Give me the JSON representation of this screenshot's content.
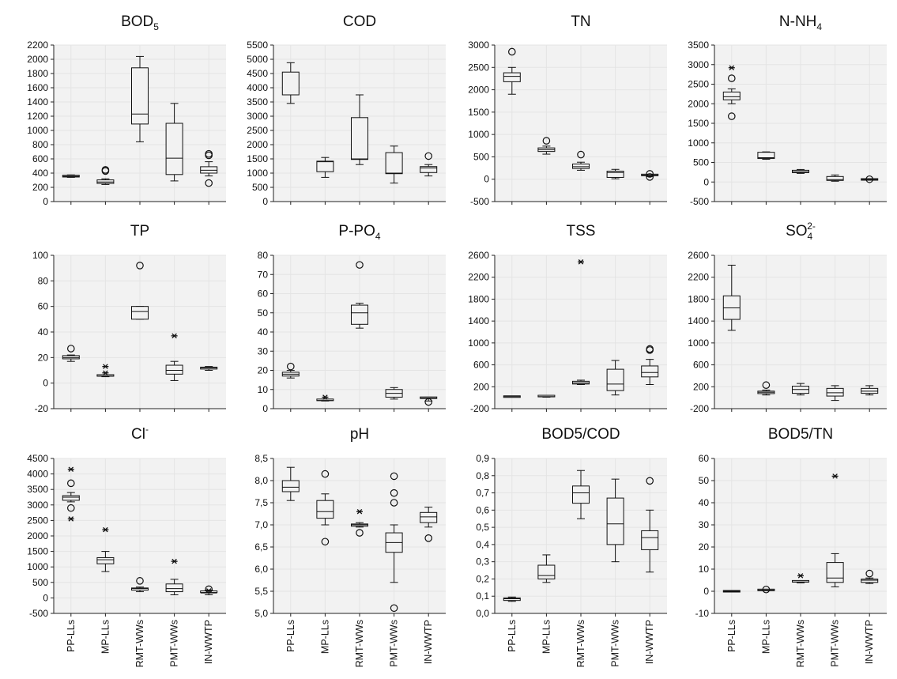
{
  "figure": {
    "colors": {
      "panel_bg": "#f2f2f2",
      "grid": "#e4e4e4",
      "ink": "#111111"
    },
    "categories": [
      "PP-LLs",
      "MP-LLs",
      "RMT-WWs",
      "PMT-WWs",
      "IN-WWTP"
    ]
  },
  "chart_data": [
    {
      "type": "box",
      "title": "BOD",
      "title_sub": "5",
      "title_sup": "",
      "ylim": [
        0,
        2200
      ],
      "yticks": [
        0,
        200,
        400,
        600,
        800,
        1000,
        1200,
        1400,
        1600,
        1800,
        2000,
        2200
      ],
      "ytick_labels": [
        "0",
        "200",
        "400",
        "600",
        "800",
        "1000",
        "1200",
        "1400",
        "1600",
        "1800",
        "2000",
        "2200"
      ],
      "boxes": [
        {
          "wlo": 340,
          "q1": 345,
          "med": 355,
          "q3": 370,
          "whi": 375,
          "outliers": [],
          "extremes": []
        },
        {
          "wlo": 240,
          "q1": 255,
          "med": 275,
          "q3": 305,
          "whi": 320,
          "outliers": [
            430,
            445
          ],
          "extremes": []
        },
        {
          "wlo": 840,
          "q1": 1090,
          "med": 1230,
          "q3": 1880,
          "whi": 2040,
          "outliers": [],
          "extremes": []
        },
        {
          "wlo": 290,
          "q1": 380,
          "med": 610,
          "q3": 1100,
          "whi": 1380,
          "outliers": [],
          "extremes": []
        },
        {
          "wlo": 360,
          "q1": 400,
          "med": 440,
          "q3": 490,
          "whi": 560,
          "outliers": [
            260,
            650,
            670
          ],
          "extremes": []
        }
      ]
    },
    {
      "type": "box",
      "title": "COD",
      "title_sub": "",
      "title_sup": "",
      "ylim": [
        0,
        5500
      ],
      "yticks": [
        0,
        500,
        1000,
        1500,
        2000,
        2500,
        3000,
        3500,
        4000,
        4500,
        5000,
        5500
      ],
      "ytick_labels": [
        "0",
        "500",
        "1000",
        "1500",
        "2000",
        "2500",
        "3000",
        "3500",
        "4000",
        "4500",
        "5000",
        "5500"
      ],
      "boxes": [
        {
          "wlo": 3450,
          "q1": 3750,
          "med": 3750,
          "q3": 4550,
          "whi": 4880,
          "outliers": [],
          "extremes": []
        },
        {
          "wlo": 850,
          "q1": 1050,
          "med": 1400,
          "q3": 1420,
          "whi": 1550,
          "outliers": [],
          "extremes": []
        },
        {
          "wlo": 1300,
          "q1": 1480,
          "med": 1500,
          "q3": 2950,
          "whi": 3750,
          "outliers": [],
          "extremes": []
        },
        {
          "wlo": 650,
          "q1": 980,
          "med": 1000,
          "q3": 1720,
          "whi": 1950,
          "outliers": [],
          "extremes": []
        },
        {
          "wlo": 900,
          "q1": 1020,
          "med": 1180,
          "q3": 1230,
          "whi": 1300,
          "outliers": [
            1600
          ],
          "extremes": []
        }
      ]
    },
    {
      "type": "box",
      "title": "TN",
      "title_sub": "",
      "title_sup": "",
      "ylim": [
        -500,
        3000
      ],
      "yticks": [
        -500,
        0,
        500,
        1000,
        1500,
        2000,
        2500,
        3000
      ],
      "ytick_labels": [
        "-500",
        "0",
        "500",
        "1000",
        "1500",
        "2000",
        "2500",
        "3000"
      ],
      "boxes": [
        {
          "wlo": 1900,
          "q1": 2180,
          "med": 2300,
          "q3": 2380,
          "whi": 2500,
          "outliers": [
            2850
          ],
          "extremes": []
        },
        {
          "wlo": 560,
          "q1": 620,
          "med": 660,
          "q3": 700,
          "whi": 740,
          "outliers": [
            860
          ],
          "extremes": []
        },
        {
          "wlo": 200,
          "q1": 240,
          "med": 280,
          "q3": 340,
          "whi": 380,
          "outliers": [
            550
          ],
          "extremes": []
        },
        {
          "wlo": 10,
          "q1": 40,
          "med": 150,
          "q3": 180,
          "whi": 220,
          "outliers": [],
          "extremes": []
        },
        {
          "wlo": 60,
          "q1": 80,
          "med": 90,
          "q3": 95,
          "whi": 100,
          "outliers": [
            50,
            120
          ],
          "extremes": []
        }
      ]
    },
    {
      "type": "box",
      "title": "N-NH",
      "title_sub": "4",
      "title_sup": "",
      "ylim": [
        -500,
        3500
      ],
      "yticks": [
        -500,
        0,
        500,
        1000,
        1500,
        2000,
        2500,
        3000,
        3500
      ],
      "ytick_labels": [
        "-500",
        "0",
        "500",
        "1000",
        "1500",
        "2000",
        "2500",
        "3000",
        "3500"
      ],
      "boxes": [
        {
          "wlo": 2000,
          "q1": 2100,
          "med": 2180,
          "q3": 2300,
          "whi": 2380,
          "outliers": [
            1680,
            2650
          ],
          "extremes": [
            2920
          ]
        },
        {
          "wlo": 580,
          "q1": 600,
          "med": 620,
          "q3": 760,
          "whi": 770,
          "outliers": [],
          "extremes": []
        },
        {
          "wlo": 220,
          "q1": 240,
          "med": 260,
          "q3": 300,
          "whi": 320,
          "outliers": [],
          "extremes": []
        },
        {
          "wlo": 20,
          "q1": 40,
          "med": 60,
          "q3": 140,
          "whi": 180,
          "outliers": [],
          "extremes": []
        },
        {
          "wlo": 55,
          "q1": 60,
          "med": 62,
          "q3": 66,
          "whi": 70,
          "outliers": [
            70
          ],
          "extremes": []
        }
      ]
    },
    {
      "type": "box",
      "title": "TP",
      "title_sub": "",
      "title_sup": "",
      "ylim": [
        -20,
        100
      ],
      "yticks": [
        -20,
        0,
        20,
        40,
        60,
        80,
        100
      ],
      "ytick_labels": [
        "-20",
        "0",
        "20",
        "40",
        "60",
        "80",
        "100"
      ],
      "boxes": [
        {
          "wlo": 17,
          "q1": 19,
          "med": 20,
          "q3": 21.5,
          "whi": 22,
          "outliers": [
            27
          ],
          "extremes": []
        },
        {
          "wlo": 5,
          "q1": 5,
          "med": 5.5,
          "q3": 6,
          "whi": 6,
          "outliers": [],
          "extremes": [
            8,
            13
          ]
        },
        {
          "wlo": 50,
          "q1": 50,
          "med": 56,
          "q3": 60,
          "whi": 60,
          "outliers": [
            92
          ],
          "extremes": []
        },
        {
          "wlo": 2,
          "q1": 7,
          "med": 10,
          "q3": 14,
          "whi": 17,
          "outliers": [],
          "extremes": [
            37
          ]
        },
        {
          "wlo": 10,
          "q1": 11,
          "med": 12,
          "q3": 12.5,
          "whi": 13,
          "outliers": [],
          "extremes": []
        }
      ]
    },
    {
      "type": "box",
      "title": "P-PO",
      "title_sub": "4",
      "title_sup": "",
      "ylim": [
        0,
        80
      ],
      "yticks": [
        0,
        10,
        20,
        30,
        40,
        50,
        60,
        70,
        80
      ],
      "ytick_labels": [
        "0",
        "10",
        "20",
        "30",
        "40",
        "50",
        "60",
        "70",
        "80"
      ],
      "boxes": [
        {
          "wlo": 16,
          "q1": 17,
          "med": 18,
          "q3": 19,
          "whi": 20,
          "outliers": [
            22
          ],
          "extremes": []
        },
        {
          "wlo": 4,
          "q1": 4,
          "med": 4.3,
          "q3": 4.6,
          "whi": 5,
          "outliers": [],
          "extremes": [
            6
          ]
        },
        {
          "wlo": 42,
          "q1": 44,
          "med": 50,
          "q3": 54,
          "whi": 55,
          "outliers": [
            75
          ],
          "extremes": []
        },
        {
          "wlo": 5,
          "q1": 6,
          "med": 8,
          "q3": 10,
          "whi": 11,
          "outliers": [],
          "extremes": []
        },
        {
          "wlo": 4,
          "q1": 5,
          "med": 5.5,
          "q3": 5.7,
          "whi": 6,
          "outliers": [
            3.5
          ],
          "extremes": []
        }
      ]
    },
    {
      "type": "box",
      "title": "TSS",
      "title_sub": "",
      "title_sup": "",
      "ylim": [
        -200,
        2600
      ],
      "yticks": [
        -200,
        200,
        600,
        1000,
        1400,
        1800,
        2200,
        2600
      ],
      "ytick_labels": [
        "-200",
        "200",
        "600",
        "1000",
        "1400",
        "1800",
        "2200",
        "2600"
      ],
      "boxes": [
        {
          "wlo": 20,
          "q1": 20,
          "med": 20,
          "q3": 20,
          "whi": 20,
          "outliers": [],
          "extremes": []
        },
        {
          "wlo": 10,
          "q1": 15,
          "med": 20,
          "q3": 30,
          "whi": 35,
          "outliers": [],
          "extremes": []
        },
        {
          "wlo": 240,
          "q1": 250,
          "med": 270,
          "q3": 300,
          "whi": 320,
          "outliers": [],
          "extremes": [
            2480
          ]
        },
        {
          "wlo": 50,
          "q1": 130,
          "med": 250,
          "q3": 520,
          "whi": 680,
          "outliers": [],
          "extremes": []
        },
        {
          "wlo": 240,
          "q1": 380,
          "med": 460,
          "q3": 580,
          "whi": 700,
          "outliers": [
            870,
            890
          ],
          "extremes": []
        }
      ]
    },
    {
      "type": "box",
      "title": "SO",
      "title_sub": "4",
      "title_sup": "2-",
      "ylim": [
        -200,
        2600
      ],
      "yticks": [
        -200,
        200,
        600,
        1000,
        1400,
        1800,
        2200,
        2600
      ],
      "ytick_labels": [
        "-200",
        "200",
        "600",
        "1000",
        "1400",
        "1800",
        "2200",
        "2600"
      ],
      "boxes": [
        {
          "wlo": 1230,
          "q1": 1430,
          "med": 1640,
          "q3": 1860,
          "whi": 2420,
          "outliers": [],
          "extremes": []
        },
        {
          "wlo": 50,
          "q1": 75,
          "med": 100,
          "q3": 120,
          "whi": 140,
          "outliers": [
            230
          ],
          "extremes": []
        },
        {
          "wlo": 50,
          "q1": 80,
          "med": 150,
          "q3": 210,
          "whi": 260,
          "outliers": [],
          "extremes": []
        },
        {
          "wlo": -50,
          "q1": 30,
          "med": 90,
          "q3": 170,
          "whi": 220,
          "outliers": [],
          "extremes": []
        },
        {
          "wlo": 50,
          "q1": 80,
          "med": 120,
          "q3": 170,
          "whi": 220,
          "outliers": [],
          "extremes": []
        }
      ]
    },
    {
      "type": "box",
      "title": "Cl",
      "title_sub": "",
      "title_sup": "-",
      "ylim": [
        -500,
        4500
      ],
      "yticks": [
        -500,
        0,
        500,
        1000,
        1500,
        2000,
        2500,
        3000,
        3500,
        4000,
        4500
      ],
      "ytick_labels": [
        "-500",
        "0",
        "500",
        "1000",
        "1500",
        "2000",
        "2500",
        "3000",
        "3500",
        "4000",
        "4500"
      ],
      "boxes": [
        {
          "wlo": 3100,
          "q1": 3150,
          "med": 3250,
          "q3": 3300,
          "whi": 3400,
          "outliers": [
            2900,
            3700
          ],
          "extremes": [
            2550,
            4150
          ]
        },
        {
          "wlo": 850,
          "q1": 1100,
          "med": 1230,
          "q3": 1300,
          "whi": 1500,
          "outliers": [],
          "extremes": [
            2200
          ]
        },
        {
          "wlo": 200,
          "q1": 250,
          "med": 300,
          "q3": 320,
          "whi": 350,
          "outliers": [
            550
          ],
          "extremes": []
        },
        {
          "wlo": 100,
          "q1": 200,
          "med": 300,
          "q3": 450,
          "whi": 600,
          "outliers": [],
          "extremes": [
            1180
          ]
        },
        {
          "wlo": 100,
          "q1": 150,
          "med": 160,
          "q3": 200,
          "whi": 250,
          "outliers": [
            280
          ],
          "extremes": [
            230
          ]
        }
      ]
    },
    {
      "type": "box",
      "title": "pH",
      "title_sub": "",
      "title_sup": "",
      "ylim": [
        5.0,
        8.5
      ],
      "yticks": [
        5.0,
        5.5,
        6.0,
        6.5,
        7.0,
        7.5,
        8.0,
        8.5
      ],
      "ytick_labels": [
        "5,0",
        "5,5",
        "6,0",
        "6,5",
        "7,0",
        "7,5",
        "8,0",
        "8,5"
      ],
      "boxes": [
        {
          "wlo": 7.55,
          "q1": 7.75,
          "med": 7.85,
          "q3": 8.0,
          "whi": 8.3,
          "outliers": [],
          "extremes": []
        },
        {
          "wlo": 7.0,
          "q1": 7.15,
          "med": 7.3,
          "q3": 7.55,
          "whi": 7.7,
          "outliers": [
            6.62,
            8.15
          ],
          "extremes": []
        },
        {
          "wlo": 6.95,
          "q1": 6.97,
          "med": 7.0,
          "q3": 7.02,
          "whi": 7.05,
          "outliers": [
            6.82
          ],
          "extremes": [
            7.3
          ]
        },
        {
          "wlo": 5.7,
          "q1": 6.38,
          "med": 6.6,
          "q3": 6.82,
          "whi": 7.0,
          "outliers": [
            5.12,
            7.5,
            7.72,
            8.1
          ],
          "extremes": []
        },
        {
          "wlo": 6.95,
          "q1": 7.05,
          "med": 7.18,
          "q3": 7.28,
          "whi": 7.4,
          "outliers": [
            6.7
          ],
          "extremes": []
        }
      ]
    },
    {
      "type": "box",
      "title": "BOD5/COD",
      "title_sub": "",
      "title_sup": "",
      "ylim": [
        0.0,
        0.9
      ],
      "yticks": [
        0.0,
        0.1,
        0.2,
        0.3,
        0.4,
        0.5,
        0.6,
        0.7,
        0.8,
        0.9
      ],
      "ytick_labels": [
        "0,0",
        "0,1",
        "0,2",
        "0,3",
        "0,4",
        "0,5",
        "0,6",
        "0,7",
        "0,8",
        "0,9"
      ],
      "boxes": [
        {
          "wlo": 0.07,
          "q1": 0.075,
          "med": 0.085,
          "q3": 0.09,
          "whi": 0.095,
          "outliers": [],
          "extremes": []
        },
        {
          "wlo": 0.18,
          "q1": 0.2,
          "med": 0.22,
          "q3": 0.28,
          "whi": 0.34,
          "outliers": [],
          "extremes": []
        },
        {
          "wlo": 0.55,
          "q1": 0.64,
          "med": 0.7,
          "q3": 0.74,
          "whi": 0.83,
          "outliers": [],
          "extremes": []
        },
        {
          "wlo": 0.3,
          "q1": 0.4,
          "med": 0.52,
          "q3": 0.67,
          "whi": 0.78,
          "outliers": [],
          "extremes": []
        },
        {
          "wlo": 0.24,
          "q1": 0.37,
          "med": 0.44,
          "q3": 0.48,
          "whi": 0.6,
          "outliers": [
            0.77
          ],
          "extremes": []
        }
      ]
    },
    {
      "type": "box",
      "title": "BOD5/TN",
      "title_sub": "",
      "title_sup": "",
      "ylim": [
        -10,
        60
      ],
      "yticks": [
        -10,
        0,
        10,
        20,
        30,
        40,
        50,
        60
      ],
      "ytick_labels": [
        "-10",
        "0",
        "10",
        "20",
        "30",
        "40",
        "50",
        "60"
      ],
      "boxes": [
        {
          "wlo": 0,
          "q1": 0,
          "med": 0,
          "q3": 0,
          "whi": 0,
          "outliers": [],
          "extremes": []
        },
        {
          "wlo": 0.3,
          "q1": 0.4,
          "med": 0.5,
          "q3": 0.6,
          "whi": 0.7,
          "outliers": [
            0.8
          ],
          "extremes": []
        },
        {
          "wlo": 3.8,
          "q1": 4,
          "med": 4.2,
          "q3": 4.5,
          "whi": 4.8,
          "outliers": [],
          "extremes": [
            7
          ]
        },
        {
          "wlo": 2,
          "q1": 4,
          "med": 6,
          "q3": 13,
          "whi": 17,
          "outliers": [],
          "extremes": [
            52
          ]
        },
        {
          "wlo": 3.5,
          "q1": 4,
          "med": 5,
          "q3": 5.5,
          "whi": 6,
          "outliers": [
            8
          ],
          "extremes": []
        }
      ]
    }
  ]
}
